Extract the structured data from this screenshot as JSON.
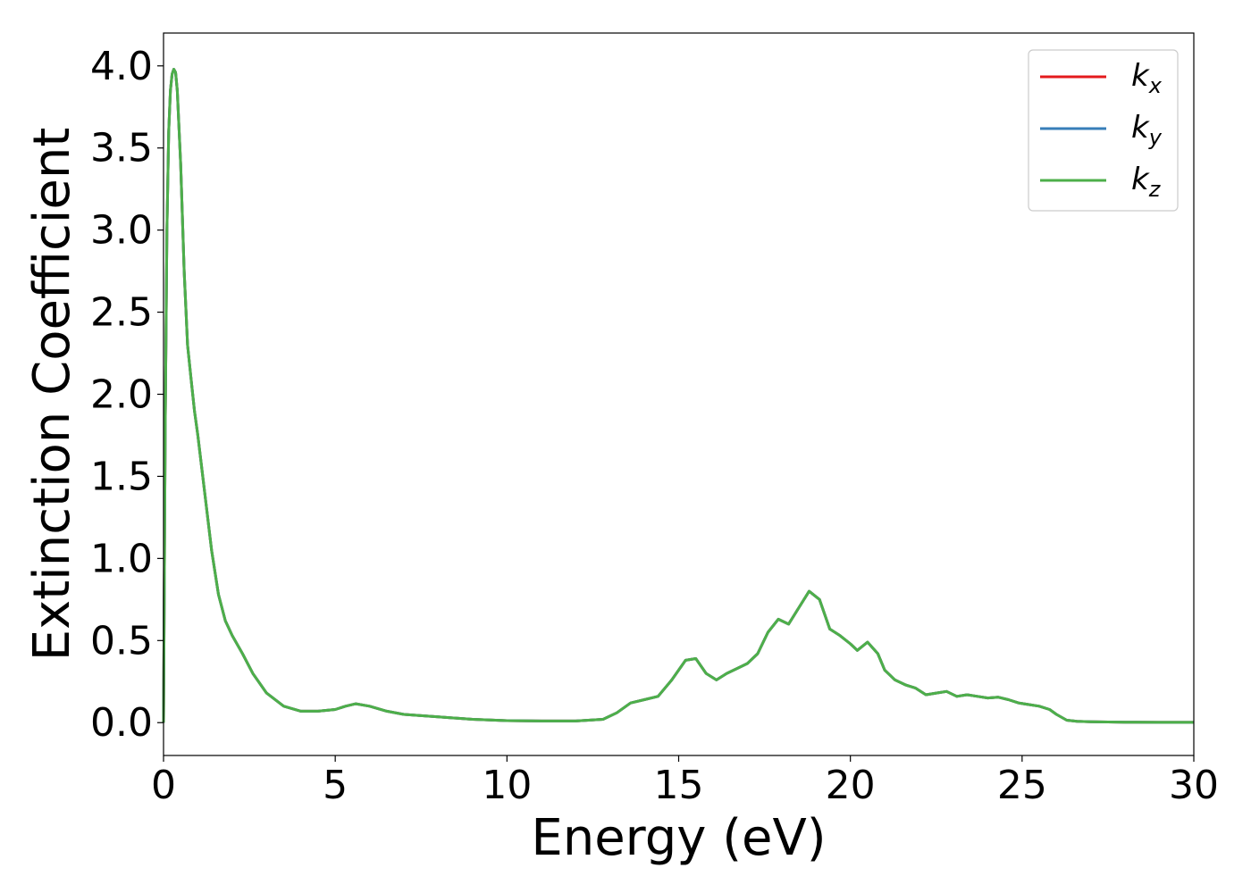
{
  "chart_data": {
    "type": "line",
    "title": "",
    "xlabel": "Energy (eV)",
    "ylabel": "Extinction Coefficient",
    "xlim": [
      0,
      30
    ],
    "ylim": [
      -0.2,
      4.2
    ],
    "xticks": [
      0,
      5,
      10,
      15,
      20,
      25,
      30
    ],
    "xtick_labels": [
      "0",
      "5",
      "10",
      "15",
      "20",
      "25",
      "30"
    ],
    "yticks": [
      0.0,
      0.5,
      1.0,
      1.5,
      2.0,
      2.5,
      3.0,
      3.5,
      4.0
    ],
    "ytick_labels": [
      "0.0",
      "0.5",
      "1.0",
      "1.5",
      "2.0",
      "2.5",
      "3.0",
      "3.5",
      "4.0"
    ],
    "grid": false,
    "legend_position": "top-right",
    "x": [
      0,
      0.05,
      0.1,
      0.15,
      0.2,
      0.25,
      0.3,
      0.35,
      0.4,
      0.5,
      0.6,
      0.7,
      0.8,
      0.9,
      1.0,
      1.2,
      1.4,
      1.6,
      1.8,
      2.0,
      2.3,
      2.6,
      3.0,
      3.5,
      4.0,
      4.5,
      5.0,
      5.3,
      5.6,
      6.0,
      6.5,
      7.0,
      8.0,
      9.0,
      10.0,
      11.0,
      12.0,
      12.8,
      13.2,
      13.6,
      14.0,
      14.4,
      14.8,
      15.2,
      15.5,
      15.8,
      16.1,
      16.4,
      16.7,
      17.0,
      17.3,
      17.6,
      17.9,
      18.2,
      18.5,
      18.8,
      19.1,
      19.4,
      19.7,
      20.0,
      20.2,
      20.5,
      20.8,
      21.0,
      21.3,
      21.6,
      21.9,
      22.2,
      22.5,
      22.8,
      23.1,
      23.4,
      23.7,
      24.0,
      24.3,
      24.6,
      24.9,
      25.2,
      25.5,
      25.8,
      26.0,
      26.3,
      26.6,
      27.0,
      28.0,
      29.0,
      30.0
    ],
    "series": [
      {
        "name": "k_x",
        "label_base": "k",
        "label_sub": "x",
        "color": "#e41a1c",
        "values": [
          0.0,
          1.8,
          3.0,
          3.6,
          3.85,
          3.95,
          3.98,
          3.96,
          3.85,
          3.4,
          2.75,
          2.3,
          2.1,
          1.9,
          1.75,
          1.4,
          1.05,
          0.78,
          0.62,
          0.53,
          0.42,
          0.3,
          0.18,
          0.1,
          0.07,
          0.07,
          0.08,
          0.1,
          0.115,
          0.1,
          0.07,
          0.05,
          0.035,
          0.02,
          0.012,
          0.01,
          0.01,
          0.02,
          0.06,
          0.12,
          0.14,
          0.16,
          0.26,
          0.38,
          0.39,
          0.3,
          0.26,
          0.3,
          0.33,
          0.36,
          0.42,
          0.55,
          0.63,
          0.6,
          0.7,
          0.8,
          0.75,
          0.57,
          0.53,
          0.48,
          0.44,
          0.49,
          0.42,
          0.32,
          0.26,
          0.23,
          0.21,
          0.17,
          0.18,
          0.19,
          0.16,
          0.17,
          0.16,
          0.15,
          0.155,
          0.14,
          0.12,
          0.11,
          0.1,
          0.08,
          0.05,
          0.015,
          0.008,
          0.005,
          0.003,
          0.002,
          0.002
        ]
      },
      {
        "name": "k_y",
        "label_base": "k",
        "label_sub": "y",
        "color": "#377eb8",
        "values": [
          0.0,
          1.8,
          3.0,
          3.6,
          3.85,
          3.95,
          3.98,
          3.96,
          3.85,
          3.4,
          2.75,
          2.3,
          2.1,
          1.9,
          1.75,
          1.4,
          1.05,
          0.78,
          0.62,
          0.53,
          0.42,
          0.3,
          0.18,
          0.1,
          0.07,
          0.07,
          0.08,
          0.1,
          0.115,
          0.1,
          0.07,
          0.05,
          0.035,
          0.02,
          0.012,
          0.01,
          0.01,
          0.02,
          0.06,
          0.12,
          0.14,
          0.16,
          0.26,
          0.38,
          0.39,
          0.3,
          0.26,
          0.3,
          0.33,
          0.36,
          0.42,
          0.55,
          0.63,
          0.6,
          0.7,
          0.8,
          0.75,
          0.57,
          0.53,
          0.48,
          0.44,
          0.49,
          0.42,
          0.32,
          0.26,
          0.23,
          0.21,
          0.17,
          0.18,
          0.19,
          0.16,
          0.17,
          0.16,
          0.15,
          0.155,
          0.14,
          0.12,
          0.11,
          0.1,
          0.08,
          0.05,
          0.015,
          0.008,
          0.005,
          0.003,
          0.002,
          0.002
        ]
      },
      {
        "name": "k_z",
        "label_base": "k",
        "label_sub": "z",
        "color": "#4daf4a",
        "values": [
          0.0,
          1.8,
          3.0,
          3.6,
          3.85,
          3.95,
          3.98,
          3.96,
          3.85,
          3.4,
          2.75,
          2.3,
          2.1,
          1.9,
          1.75,
          1.4,
          1.05,
          0.78,
          0.62,
          0.53,
          0.42,
          0.3,
          0.18,
          0.1,
          0.07,
          0.07,
          0.08,
          0.1,
          0.115,
          0.1,
          0.07,
          0.05,
          0.035,
          0.02,
          0.012,
          0.01,
          0.01,
          0.02,
          0.06,
          0.12,
          0.14,
          0.16,
          0.26,
          0.38,
          0.39,
          0.3,
          0.26,
          0.3,
          0.33,
          0.36,
          0.42,
          0.55,
          0.63,
          0.6,
          0.7,
          0.8,
          0.75,
          0.57,
          0.53,
          0.48,
          0.44,
          0.49,
          0.42,
          0.32,
          0.26,
          0.23,
          0.21,
          0.17,
          0.18,
          0.19,
          0.16,
          0.17,
          0.16,
          0.15,
          0.155,
          0.14,
          0.12,
          0.11,
          0.1,
          0.08,
          0.05,
          0.015,
          0.008,
          0.005,
          0.003,
          0.002,
          0.002
        ]
      }
    ]
  }
}
